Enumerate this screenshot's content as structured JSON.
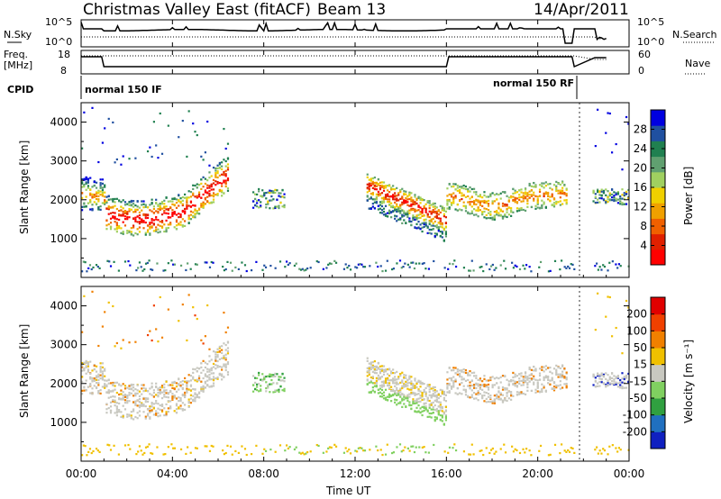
{
  "header": {
    "title": "Christmas Valley East (fitACF)",
    "beam": "Beam 13",
    "date": "14/Apr/2011"
  },
  "noise_panel": {
    "left_label": "N.Sky",
    "right_label": "N.Search",
    "left_ticks": [
      "10^5",
      "10^0"
    ],
    "right_ticks": [
      "10^5",
      "10^0"
    ]
  },
  "freq_panel": {
    "left_label_1": "Freq.",
    "left_label_2": "[MHz]",
    "right_label": "Nave",
    "left_ticks": [
      "18",
      "8"
    ],
    "right_ticks": [
      "60",
      "0"
    ]
  },
  "cpid": {
    "label": "CPID",
    "modes": [
      "normal 150 IF",
      "normal 150 RF"
    ]
  },
  "x_axis": {
    "label": "Time UT",
    "ticks": [
      "00:00",
      "04:00",
      "08:00",
      "12:00",
      "16:00",
      "20:00",
      "00:00"
    ]
  },
  "power_panel": {
    "ylabel": "Slant Range [km]",
    "yticks": [
      "1000",
      "2000",
      "3000",
      "4000"
    ],
    "colorbar_label": "Power [dB]",
    "colorbar_ticks": [
      "4",
      "8",
      "12",
      "16",
      "20",
      "24",
      "28"
    ],
    "colors": [
      "#0000e0",
      "#2050a0",
      "#208050",
      "#60a070",
      "#a0d060",
      "#f0d000",
      "#f0a000",
      "#f06000",
      "#e02000",
      "#ff0000"
    ]
  },
  "velocity_panel": {
    "ylabel": "Slant Range [km]",
    "yticks": [
      "1000",
      "2000",
      "3000",
      "4000"
    ],
    "colorbar_label": "Velocity [m s⁻¹]",
    "colorbar_ticks": [
      "200",
      "100",
      "50",
      "15",
      "-15",
      "-50",
      "-100",
      "-200"
    ],
    "colors": [
      "#1020c0",
      "#2070c0",
      "#30a040",
      "#80d060",
      "#c8c8c0",
      "#f0c000",
      "#f08000",
      "#f04000",
      "#e00000"
    ]
  },
  "chart_data": [
    {
      "type": "heatmap",
      "title": "Power [dB]",
      "xlabel": "Time UT",
      "ylabel": "Slant Range [km]",
      "xlim": [
        "00:00",
        "00:00"
      ],
      "ylim": [
        0,
        4500
      ],
      "colorbar": {
        "label": "Power [dB]",
        "ticks": [
          4,
          8,
          12,
          16,
          20,
          24,
          28
        ]
      }
    },
    {
      "type": "heatmap",
      "title": "Velocity",
      "xlabel": "Time UT",
      "ylabel": "Slant Range [km]",
      "xlim": [
        "00:00",
        "00:00"
      ],
      "ylim": [
        0,
        4500
      ],
      "colorbar": {
        "label": "Velocity [m s⁻¹]",
        "ticks": [
          200,
          100,
          50,
          15,
          -15,
          -50,
          -100,
          -200
        ]
      }
    }
  ]
}
